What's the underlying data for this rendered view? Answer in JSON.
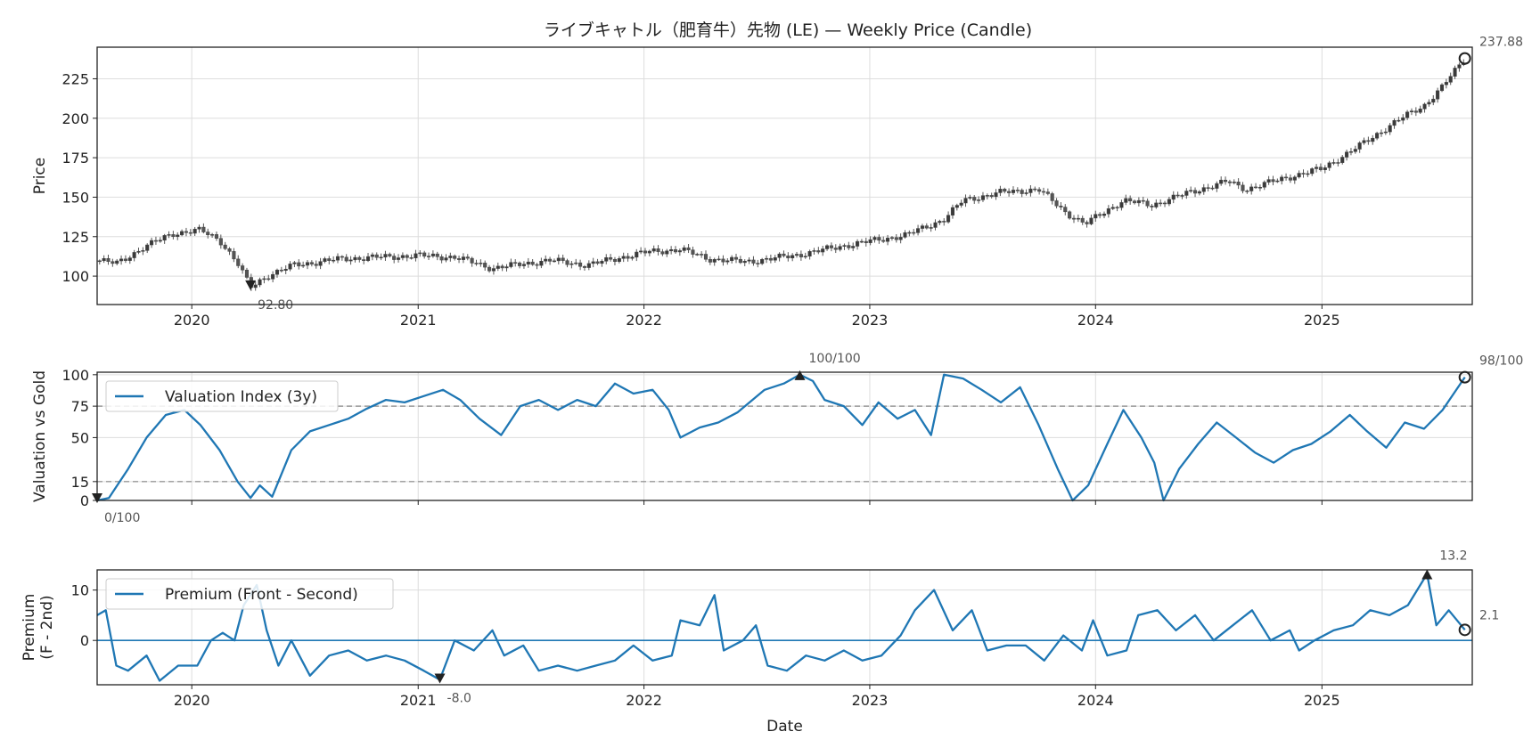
{
  "title": "ライブキャトル（肥育牛）先物 (LE) — Weekly Price (Candle)",
  "chart_data": [
    {
      "type": "candlestick",
      "title": "ライブキャトル（肥育牛）先物 (LE) — Weekly Price (Candle)",
      "ylabel": "Price",
      "ylim": [
        82,
        245
      ],
      "yticks": [
        100,
        125,
        150,
        175,
        200,
        225
      ],
      "xlim": [
        "2019-08-01",
        "2025-09-01"
      ],
      "xticks": [
        "2020",
        "2021",
        "2022",
        "2023",
        "2024",
        "2025"
      ],
      "grid": true,
      "anchors": [
        [
          "2019-08-01",
          110
        ],
        [
          "2019-09-01",
          108
        ],
        [
          "2019-10-15",
          118
        ],
        [
          "2019-12-01",
          127
        ],
        [
          "2020-01-15",
          129
        ],
        [
          "2020-02-15",
          123
        ],
        [
          "2020-03-15",
          108
        ],
        [
          "2020-04-05",
          93
        ],
        [
          "2020-05-01",
          100
        ],
        [
          "2020-06-15",
          107
        ],
        [
          "2020-09-01",
          111
        ],
        [
          "2021-01-01",
          113
        ],
        [
          "2021-03-01",
          112
        ],
        [
          "2021-05-01",
          105
        ],
        [
          "2021-08-01",
          110
        ],
        [
          "2021-10-01",
          107
        ],
        [
          "2022-01-01",
          115
        ],
        [
          "2022-03-01",
          117
        ],
        [
          "2022-04-15",
          111
        ],
        [
          "2022-06-15",
          109
        ],
        [
          "2022-09-01",
          113
        ],
        [
          "2022-12-01",
          120
        ],
        [
          "2023-03-01",
          126
        ],
        [
          "2023-05-01",
          136
        ],
        [
          "2023-06-01",
          148
        ],
        [
          "2023-08-01",
          153
        ],
        [
          "2023-10-01",
          155
        ],
        [
          "2023-11-15",
          140
        ],
        [
          "2023-12-15",
          133
        ],
        [
          "2024-02-15",
          148
        ],
        [
          "2024-04-01",
          145
        ],
        [
          "2024-06-01",
          153
        ],
        [
          "2024-08-01",
          160
        ],
        [
          "2024-09-01",
          155
        ],
        [
          "2024-11-01",
          162
        ],
        [
          "2025-01-01",
          168
        ],
        [
          "2025-03-01",
          182
        ],
        [
          "2025-05-01",
          198
        ],
        [
          "2025-06-15",
          208
        ],
        [
          "2025-07-15",
          220
        ],
        [
          "2025-08-20",
          237.88
        ]
      ],
      "annotations": [
        {
          "date": "2020-04-05",
          "value": 92.8,
          "text": "92.80",
          "marker": "min"
        },
        {
          "date": "2025-08-20",
          "value": 237.88,
          "text": "237.88",
          "marker": "last"
        }
      ]
    },
    {
      "type": "line",
      "ylabel": "Valuation vs Gold",
      "ylim": [
        0,
        102
      ],
      "yticks": [
        0,
        15,
        50,
        75,
        100
      ],
      "hlines": [
        15,
        75
      ],
      "series": [
        {
          "name": "Valuation Index (3y)",
          "color": "#1f77b4",
          "points": [
            [
              "2019-08-01",
              0
            ],
            [
              "2019-08-20",
              2
            ],
            [
              "2019-09-20",
              25
            ],
            [
              "2019-10-20",
              50
            ],
            [
              "2019-11-20",
              68
            ],
            [
              "2019-12-20",
              72
            ],
            [
              "2020-01-15",
              60
            ],
            [
              "2020-02-15",
              40
            ],
            [
              "2020-03-15",
              15
            ],
            [
              "2020-04-05",
              2
            ],
            [
              "2020-04-20",
              12
            ],
            [
              "2020-05-10",
              3
            ],
            [
              "2020-06-10",
              40
            ],
            [
              "2020-07-10",
              55
            ],
            [
              "2020-08-10",
              60
            ],
            [
              "2020-09-10",
              65
            ],
            [
              "2020-10-10",
              73
            ],
            [
              "2020-11-10",
              80
            ],
            [
              "2020-12-10",
              78
            ],
            [
              "2021-01-10",
              83
            ],
            [
              "2021-02-10",
              88
            ],
            [
              "2021-03-10",
              80
            ],
            [
              "2021-04-10",
              65
            ],
            [
              "2021-05-15",
              52
            ],
            [
              "2021-06-15",
              75
            ],
            [
              "2021-07-15",
              80
            ],
            [
              "2021-08-15",
              72
            ],
            [
              "2021-09-15",
              80
            ],
            [
              "2021-10-15",
              75
            ],
            [
              "2021-11-15",
              93
            ],
            [
              "2021-12-15",
              85
            ],
            [
              "2022-01-15",
              88
            ],
            [
              "2022-02-10",
              72
            ],
            [
              "2022-03-01",
              50
            ],
            [
              "2022-04-01",
              58
            ],
            [
              "2022-05-01",
              62
            ],
            [
              "2022-06-01",
              70
            ],
            [
              "2022-07-15",
              88
            ],
            [
              "2022-08-15",
              93
            ],
            [
              "2022-09-10",
              100
            ],
            [
              "2022-10-01",
              95
            ],
            [
              "2022-10-20",
              80
            ],
            [
              "2022-11-20",
              75
            ],
            [
              "2022-12-20",
              60
            ],
            [
              "2023-01-15",
              78
            ],
            [
              "2023-02-15",
              65
            ],
            [
              "2023-03-15",
              72
            ],
            [
              "2023-04-10",
              52
            ],
            [
              "2023-05-01",
              100
            ],
            [
              "2023-06-01",
              97
            ],
            [
              "2023-07-01",
              88
            ],
            [
              "2023-08-01",
              78
            ],
            [
              "2023-09-01",
              90
            ],
            [
              "2023-10-01",
              60
            ],
            [
              "2023-11-01",
              25
            ],
            [
              "2023-11-25",
              0
            ],
            [
              "2023-12-20",
              12
            ],
            [
              "2024-01-20",
              45
            ],
            [
              "2024-02-15",
              72
            ],
            [
              "2024-03-15",
              50
            ],
            [
              "2024-04-05",
              30
            ],
            [
              "2024-04-20",
              0
            ],
            [
              "2024-05-15",
              25
            ],
            [
              "2024-06-15",
              45
            ],
            [
              "2024-07-15",
              62
            ],
            [
              "2024-08-15",
              50
            ],
            [
              "2024-09-15",
              38
            ],
            [
              "2024-10-15",
              30
            ],
            [
              "2024-11-15",
              40
            ],
            [
              "2024-12-15",
              45
            ],
            [
              "2025-01-15",
              55
            ],
            [
              "2025-02-15",
              68
            ],
            [
              "2025-03-15",
              55
            ],
            [
              "2025-04-15",
              42
            ],
            [
              "2025-05-15",
              62
            ],
            [
              "2025-06-15",
              57
            ],
            [
              "2025-07-15",
              72
            ],
            [
              "2025-08-20",
              98
            ]
          ]
        }
      ],
      "legend": "upper-left",
      "annotations": [
        {
          "date": "2019-08-01",
          "value": 0,
          "text": "0/100",
          "marker": "min"
        },
        {
          "date": "2022-09-10",
          "value": 100,
          "text": "100/100",
          "marker": "max"
        },
        {
          "date": "2025-08-20",
          "value": 98,
          "text": "98/100",
          "marker": "last"
        }
      ]
    },
    {
      "type": "line",
      "ylabel": "Premium",
      "ylabel2": "(F - 2nd)",
      "xlabel": "Date",
      "ylim": [
        -8.8,
        14
      ],
      "yticks": [
        0,
        10
      ],
      "hlines": [
        0
      ],
      "series": [
        {
          "name": "Premium (Front - Second)",
          "color": "#1f77b4",
          "points": [
            [
              "2019-08-01",
              5
            ],
            [
              "2019-08-15",
              6
            ],
            [
              "2019-09-01",
              -5
            ],
            [
              "2019-09-20",
              -6
            ],
            [
              "2019-10-20",
              -3
            ],
            [
              "2019-11-10",
              -8
            ],
            [
              "2019-12-10",
              -5
            ],
            [
              "2020-01-10",
              -5
            ],
            [
              "2020-02-01",
              0
            ],
            [
              "2020-02-20",
              1.5
            ],
            [
              "2020-03-10",
              0
            ],
            [
              "2020-03-25",
              7
            ],
            [
              "2020-04-15",
              11
            ],
            [
              "2020-05-01",
              2
            ],
            [
              "2020-05-20",
              -5
            ],
            [
              "2020-06-10",
              0
            ],
            [
              "2020-07-10",
              -7
            ],
            [
              "2020-08-10",
              -3
            ],
            [
              "2020-09-10",
              -2
            ],
            [
              "2020-10-10",
              -4
            ],
            [
              "2020-11-10",
              -3
            ],
            [
              "2020-12-10",
              -4
            ],
            [
              "2021-01-10",
              -6
            ],
            [
              "2021-02-05",
              -7.8
            ],
            [
              "2021-03-01",
              0
            ],
            [
              "2021-04-01",
              -2
            ],
            [
              "2021-05-01",
              2
            ],
            [
              "2021-05-20",
              -3
            ],
            [
              "2021-06-20",
              -1
            ],
            [
              "2021-07-15",
              -6
            ],
            [
              "2021-08-15",
              -5
            ],
            [
              "2021-09-15",
              -6
            ],
            [
              "2021-10-15",
              -5
            ],
            [
              "2021-11-15",
              -4
            ],
            [
              "2021-12-15",
              -1
            ],
            [
              "2022-01-15",
              -4
            ],
            [
              "2022-02-15",
              -3
            ],
            [
              "2022-03-01",
              4
            ],
            [
              "2022-04-01",
              3
            ],
            [
              "2022-04-25",
              9
            ],
            [
              "2022-05-10",
              -2
            ],
            [
              "2022-06-10",
              0
            ],
            [
              "2022-07-01",
              3
            ],
            [
              "2022-07-20",
              -5
            ],
            [
              "2022-08-20",
              -6
            ],
            [
              "2022-09-20",
              -3
            ],
            [
              "2022-10-20",
              -4
            ],
            [
              "2022-11-20",
              -2
            ],
            [
              "2022-12-20",
              -4
            ],
            [
              "2023-01-20",
              -3
            ],
            [
              "2023-02-20",
              1
            ],
            [
              "2023-03-15",
              6
            ],
            [
              "2023-04-15",
              10
            ],
            [
              "2023-05-15",
              2
            ],
            [
              "2023-06-15",
              6
            ],
            [
              "2023-07-10",
              -2
            ],
            [
              "2023-08-10",
              -1
            ],
            [
              "2023-09-10",
              -1
            ],
            [
              "2023-10-10",
              -4
            ],
            [
              "2023-11-10",
              1
            ],
            [
              "2023-12-10",
              -2
            ],
            [
              "2023-12-28",
              4
            ],
            [
              "2024-01-20",
              -3
            ],
            [
              "2024-02-20",
              -2
            ],
            [
              "2024-03-10",
              5
            ],
            [
              "2024-04-10",
              6
            ],
            [
              "2024-05-10",
              2
            ],
            [
              "2024-06-10",
              5
            ],
            [
              "2024-07-10",
              0
            ],
            [
              "2024-08-10",
              3
            ],
            [
              "2024-09-10",
              6
            ],
            [
              "2024-10-10",
              0
            ],
            [
              "2024-11-10",
              2
            ],
            [
              "2024-11-25",
              -2
            ],
            [
              "2024-12-20",
              0
            ],
            [
              "2025-01-20",
              2
            ],
            [
              "2025-02-20",
              3
            ],
            [
              "2025-03-20",
              6
            ],
            [
              "2025-04-20",
              5
            ],
            [
              "2025-05-20",
              7
            ],
            [
              "2025-06-20",
              13.2
            ],
            [
              "2025-07-05",
              3
            ],
            [
              "2025-07-25",
              6
            ],
            [
              "2025-08-20",
              2.1
            ]
          ]
        }
      ],
      "legend": "upper-left",
      "annotations": [
        {
          "date": "2021-02-05",
          "value": -8.0,
          "text": "-8.0",
          "marker": "min"
        },
        {
          "date": "2025-06-20",
          "value": 13.2,
          "text": "13.2",
          "marker": "max"
        },
        {
          "date": "2025-08-20",
          "value": 2.1,
          "text": "2.1",
          "marker": "last"
        }
      ]
    }
  ]
}
